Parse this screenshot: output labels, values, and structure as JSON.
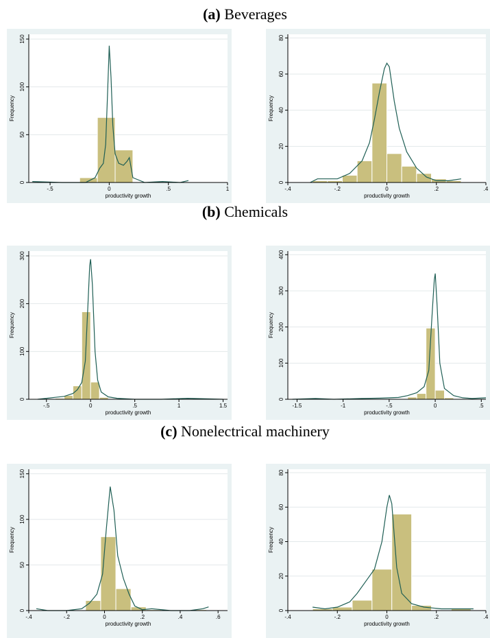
{
  "sections": [
    {
      "letter": "(a)",
      "name": "Beverages"
    },
    {
      "letter": "(b)",
      "name": "Chemicals"
    },
    {
      "letter": "(c)",
      "name": "Nonelectrical machinery"
    }
  ],
  "colors": {
    "panel_bg": "#eaf2f3",
    "plot_bg": "#ffffff",
    "bar_fill": "#c9bf7e",
    "bar_edge": "#ffffff",
    "kde_line": "#1e5e54",
    "grid": "#e3e8ea"
  },
  "chart_data": [
    {
      "id": "a-left",
      "type": "bar",
      "xlabel": "productivity growth",
      "ylabel": "Frequency",
      "xlim": [
        -0.68,
        1.0
      ],
      "ylim": [
        0,
        155
      ],
      "xticks": [
        -0.5,
        0,
        0.5,
        1
      ],
      "xtick_labels": [
        "-.5",
        "0",
        ".5",
        "1"
      ],
      "yticks": [
        0,
        50,
        100,
        150
      ],
      "ytick_labels": [
        "0",
        "50",
        "100",
        "150"
      ],
      "bins": [
        [
          -0.25,
          -0.1,
          5
        ],
        [
          -0.1,
          0.05,
          68
        ],
        [
          0.05,
          0.2,
          34
        ]
      ],
      "kde": [
        [
          -0.65,
          1
        ],
        [
          -0.4,
          0
        ],
        [
          -0.2,
          0
        ],
        [
          -0.12,
          5
        ],
        [
          -0.08,
          15
        ],
        [
          -0.05,
          20
        ],
        [
          -0.03,
          40
        ],
        [
          -0.015,
          90
        ],
        [
          0.0,
          143
        ],
        [
          0.015,
          110
        ],
        [
          0.03,
          60
        ],
        [
          0.05,
          30
        ],
        [
          0.08,
          20
        ],
        [
          0.12,
          18
        ],
        [
          0.15,
          22
        ],
        [
          0.17,
          26
        ],
        [
          0.2,
          5
        ],
        [
          0.3,
          0
        ],
        [
          0.45,
          1
        ],
        [
          0.6,
          0
        ],
        [
          0.67,
          2
        ]
      ]
    },
    {
      "id": "a-right",
      "type": "bar",
      "xlabel": "productivity growth",
      "ylabel": "Frequency",
      "xlim": [
        -0.4,
        0.4
      ],
      "ylim": [
        0,
        82
      ],
      "xticks": [
        -0.4,
        -0.2,
        0,
        0.2,
        0.4
      ],
      "xtick_labels": [
        "-.4",
        "-.2",
        "0",
        ".2",
        ".4"
      ],
      "yticks": [
        0,
        20,
        40,
        60,
        80
      ],
      "ytick_labels": [
        "0",
        "20",
        "40",
        "60",
        "80"
      ],
      "bins": [
        [
          -0.3,
          -0.24,
          1
        ],
        [
          -0.24,
          -0.18,
          1
        ],
        [
          -0.18,
          -0.12,
          4
        ],
        [
          -0.12,
          -0.06,
          12
        ],
        [
          -0.06,
          0,
          55
        ],
        [
          0,
          0.06,
          16
        ],
        [
          0.06,
          0.12,
          9
        ],
        [
          0.12,
          0.18,
          5
        ],
        [
          0.18,
          0.24,
          2
        ],
        [
          0.24,
          0.3,
          1
        ]
      ],
      "kde": [
        [
          -0.31,
          0
        ],
        [
          -0.28,
          2
        ],
        [
          -0.25,
          2
        ],
        [
          -0.2,
          2
        ],
        [
          -0.15,
          5
        ],
        [
          -0.1,
          12
        ],
        [
          -0.07,
          22
        ],
        [
          -0.05,
          35
        ],
        [
          -0.03,
          50
        ],
        [
          -0.01,
          63
        ],
        [
          0.0,
          66
        ],
        [
          0.01,
          64
        ],
        [
          0.03,
          45
        ],
        [
          0.05,
          30
        ],
        [
          0.08,
          17
        ],
        [
          0.12,
          8
        ],
        [
          0.16,
          3
        ],
        [
          0.2,
          1
        ],
        [
          0.25,
          1
        ],
        [
          0.3,
          2
        ]
      ]
    },
    {
      "id": "b-left",
      "type": "bar",
      "xlabel": "productivity growth",
      "ylabel": "Frequency",
      "xlim": [
        -0.7,
        1.55
      ],
      "ylim": [
        0,
        310
      ],
      "xticks": [
        -0.5,
        0,
        0.5,
        1,
        1.5
      ],
      "xtick_labels": [
        "-.5",
        "0",
        ".5",
        "1",
        "1.5"
      ],
      "yticks": [
        0,
        100,
        200,
        300
      ],
      "ytick_labels": [
        "0",
        "100",
        "200",
        "300"
      ],
      "bins": [
        [
          -0.6,
          -0.5,
          1
        ],
        [
          -0.5,
          -0.4,
          1
        ],
        [
          -0.4,
          -0.3,
          2
        ],
        [
          -0.3,
          -0.2,
          8
        ],
        [
          -0.2,
          -0.1,
          28
        ],
        [
          -0.1,
          0,
          183
        ],
        [
          0,
          0.1,
          36
        ],
        [
          0.1,
          0.2,
          4
        ],
        [
          0.2,
          0.3,
          1
        ]
      ],
      "kde": [
        [
          -0.6,
          0
        ],
        [
          -0.5,
          2
        ],
        [
          -0.4,
          4
        ],
        [
          -0.3,
          6
        ],
        [
          -0.2,
          12
        ],
        [
          -0.15,
          20
        ],
        [
          -0.1,
          35
        ],
        [
          -0.06,
          80
        ],
        [
          -0.03,
          200
        ],
        [
          -0.01,
          280
        ],
        [
          0.0,
          293
        ],
        [
          0.02,
          240
        ],
        [
          0.05,
          100
        ],
        [
          0.08,
          40
        ],
        [
          0.12,
          15
        ],
        [
          0.2,
          5
        ],
        [
          0.3,
          2
        ],
        [
          0.5,
          0
        ],
        [
          0.8,
          0
        ],
        [
          1.1,
          2
        ],
        [
          1.5,
          0
        ]
      ]
    },
    {
      "id": "b-right",
      "type": "bar",
      "xlabel": "productivity growth",
      "ylabel": "Frequency",
      "xlim": [
        -1.6,
        0.55
      ],
      "ylim": [
        0,
        410
      ],
      "xticks": [
        -1.5,
        -1,
        -0.5,
        0,
        0.5
      ],
      "xtick_labels": [
        "-1.5",
        "-1",
        "-.5",
        "0",
        ".5"
      ],
      "yticks": [
        0,
        100,
        200,
        300,
        400
      ],
      "ytick_labels": [
        "0",
        "100",
        "200",
        "300",
        "400"
      ],
      "bins": [
        [
          -0.3,
          -0.2,
          6
        ],
        [
          -0.2,
          -0.1,
          16
        ],
        [
          -0.1,
          0,
          197
        ],
        [
          0,
          0.1,
          25
        ],
        [
          0.1,
          0.2,
          4
        ]
      ],
      "kde": [
        [
          -1.55,
          0
        ],
        [
          -1.3,
          2
        ],
        [
          -1.1,
          0
        ],
        [
          -0.8,
          2
        ],
        [
          -0.6,
          3
        ],
        [
          -0.4,
          5
        ],
        [
          -0.3,
          10
        ],
        [
          -0.2,
          18
        ],
        [
          -0.12,
          35
        ],
        [
          -0.07,
          80
        ],
        [
          -0.03,
          250
        ],
        [
          -0.01,
          330
        ],
        [
          0.0,
          348
        ],
        [
          0.02,
          260
        ],
        [
          0.05,
          100
        ],
        [
          0.1,
          30
        ],
        [
          0.2,
          10
        ],
        [
          0.3,
          4
        ],
        [
          0.4,
          2
        ],
        [
          0.55,
          4
        ]
      ]
    },
    {
      "id": "c-left",
      "type": "bar",
      "xlabel": "productivity growth",
      "ylabel": "Frequency",
      "xlim": [
        -0.4,
        0.65
      ],
      "ylim": [
        0,
        155
      ],
      "xticks": [
        -0.4,
        -0.2,
        0,
        0.2,
        0.4,
        0.6
      ],
      "xtick_labels": [
        "-.4",
        "-.2",
        "0",
        ".2",
        ".4",
        ".6"
      ],
      "yticks": [
        0,
        50,
        100,
        150
      ],
      "ytick_labels": [
        "0",
        "50",
        "100",
        "150"
      ],
      "bins": [
        [
          -0.1,
          -0.02,
          11
        ],
        [
          -0.02,
          0.06,
          81
        ],
        [
          0.06,
          0.14,
          24
        ],
        [
          0.14,
          0.22,
          4
        ],
        [
          0.22,
          0.3,
          1
        ],
        [
          0.46,
          0.54,
          1
        ]
      ],
      "kde": [
        [
          -0.36,
          2
        ],
        [
          -0.3,
          0
        ],
        [
          -0.2,
          0
        ],
        [
          -0.12,
          2
        ],
        [
          -0.08,
          8
        ],
        [
          -0.04,
          18
        ],
        [
          -0.01,
          40
        ],
        [
          0.01,
          90
        ],
        [
          0.03,
          136
        ],
        [
          0.05,
          110
        ],
        [
          0.07,
          60
        ],
        [
          0.1,
          35
        ],
        [
          0.13,
          18
        ],
        [
          0.16,
          5
        ],
        [
          0.2,
          1
        ],
        [
          0.25,
          2
        ],
        [
          0.35,
          0
        ],
        [
          0.45,
          0
        ],
        [
          0.52,
          2
        ],
        [
          0.55,
          4
        ]
      ]
    },
    {
      "id": "c-right",
      "type": "bar",
      "xlabel": "productivity growth",
      "ylabel": "Frequency",
      "xlim": [
        -0.4,
        0.4
      ],
      "ylim": [
        0,
        82
      ],
      "xticks": [
        -0.4,
        -0.2,
        0,
        0.2,
        0.4
      ],
      "xtick_labels": [
        "-.4",
        "-.2",
        "0",
        ".2",
        ".4"
      ],
      "yticks": [
        0,
        20,
        40,
        60,
        80
      ],
      "ytick_labels": [
        "0",
        "20",
        "40",
        "60",
        "80"
      ],
      "bins": [
        [
          -0.3,
          -0.22,
          1
        ],
        [
          -0.22,
          -0.14,
          2
        ],
        [
          -0.14,
          -0.06,
          6
        ],
        [
          -0.06,
          0.02,
          24
        ],
        [
          0.02,
          0.1,
          56
        ],
        [
          0.1,
          0.18,
          3
        ],
        [
          0.26,
          0.34,
          1
        ]
      ],
      "kde": [
        [
          -0.3,
          2
        ],
        [
          -0.25,
          1
        ],
        [
          -0.2,
          2
        ],
        [
          -0.15,
          5
        ],
        [
          -0.12,
          10
        ],
        [
          -0.08,
          18
        ],
        [
          -0.05,
          24
        ],
        [
          -0.02,
          40
        ],
        [
          0.0,
          60
        ],
        [
          0.01,
          67
        ],
        [
          0.02,
          62
        ],
        [
          0.04,
          25
        ],
        [
          0.06,
          10
        ],
        [
          0.1,
          4
        ],
        [
          0.15,
          2
        ],
        [
          0.22,
          1
        ],
        [
          0.3,
          1
        ],
        [
          0.35,
          1
        ]
      ]
    }
  ]
}
